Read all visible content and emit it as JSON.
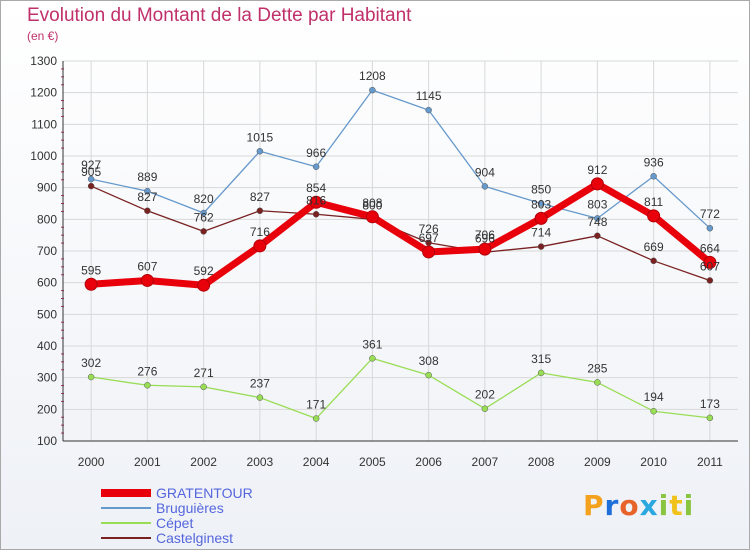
{
  "chart_data": {
    "type": "line",
    "title": "Evolution du Montant de la Dette par Habitant",
    "subtitle": "(en €)",
    "x": [
      "2000",
      "2001",
      "2002",
      "2003",
      "2004",
      "2005",
      "2006",
      "2007",
      "2008",
      "2009",
      "2010",
      "2011"
    ],
    "ylim": [
      100,
      1300
    ],
    "yticks": [
      100,
      200,
      300,
      400,
      500,
      600,
      700,
      800,
      900,
      1000,
      1100,
      1200,
      1300
    ],
    "grid": true,
    "legend_position": "bottom-left",
    "series": [
      {
        "name": "GRATENTOUR",
        "color": "#e8000b",
        "values": [
          595,
          607,
          592,
          716,
          854,
          808,
          697,
          706,
          803,
          912,
          811,
          664
        ]
      },
      {
        "name": "Bruguières",
        "color": "#6699cc",
        "values": [
          927,
          889,
          820,
          1015,
          966,
          1208,
          1145,
          904,
          850,
          803,
          936,
          772
        ]
      },
      {
        "name": "Cépet",
        "color": "#99dd55",
        "values": [
          302,
          276,
          271,
          237,
          171,
          361,
          308,
          202,
          315,
          285,
          194,
          173
        ]
      },
      {
        "name": "Castelginest",
        "color": "#7a2222",
        "values": [
          905,
          827,
          762,
          827,
          816,
          800,
          726,
          696,
          714,
          748,
          669,
          607
        ]
      }
    ]
  },
  "brand": {
    "letters": [
      "P",
      "r",
      "o",
      "x",
      "i",
      "t",
      "i"
    ],
    "colors": [
      "#f4a21d",
      "#1e6fd9",
      "#e8632a",
      "#2ca8e0",
      "#89c541",
      "#f1c21b",
      "#89c541"
    ]
  }
}
